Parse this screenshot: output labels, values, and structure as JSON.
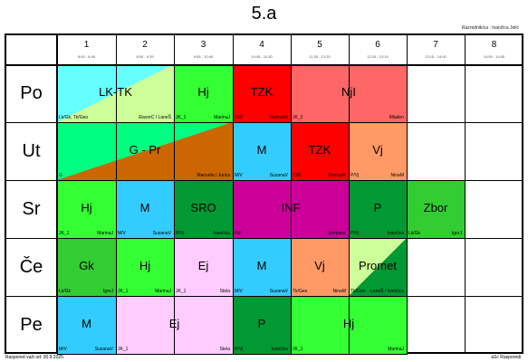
{
  "title": "5.a",
  "teacher_label": "Razrednik/ca : Ivančica Jelić",
  "footer_left": "Raspored važi od: 30.9.2025.",
  "footer_right": "aSc Rasporedi",
  "periods": [
    {
      "num": "1",
      "time": "8:00 - 8:45"
    },
    {
      "num": "2",
      "time": "8:50 - 9:35"
    },
    {
      "num": "3",
      "time": "9:55 - 10:40"
    },
    {
      "num": "4",
      "time": "10:45 - 11:30"
    },
    {
      "num": "5",
      "time": "11:35 - 12:20"
    },
    {
      "num": "6",
      "time": "12:25 - 13:10"
    },
    {
      "num": "7",
      "time": "13:15 - 14:00"
    },
    {
      "num": "8",
      "time": "14:05 - 14:50"
    }
  ],
  "days": [
    "Po",
    "Ut",
    "Sr",
    "Če",
    "Pe"
  ],
  "lessons": [
    {
      "day": 0,
      "start": 0,
      "span": 2,
      "subject": "LK-TK",
      "cls": "Lk/Gk, Tk/Geo",
      "teacher": "ĐavorC / LaneŠ",
      "color": "#66ffff",
      "color2": "#ccff99",
      "split": "tr"
    },
    {
      "day": 0,
      "start": 2,
      "span": 1,
      "subject": "Hj",
      "cls": "JK_1",
      "teacher": "MarinaJ",
      "color": "#33ff33"
    },
    {
      "day": 0,
      "start": 3,
      "span": 1,
      "subject": "TZK",
      "cls": "TZK",
      "teacher": "RomanR",
      "color": "#ff0000"
    },
    {
      "day": 0,
      "start": 4,
      "span": 2,
      "subject": "NjI",
      "cls": "JK_2",
      "teacher": "Mladen",
      "color": "#ff6666"
    },
    {
      "day": 1,
      "start": 0,
      "span": 3,
      "subject": "G - Pr",
      "cls": "G",
      "teacher": "Manuela / Jurica",
      "color": "#00ff80",
      "color2": "#cc6600",
      "split": "br"
    },
    {
      "day": 1,
      "start": 3,
      "span": 1,
      "subject": "M",
      "cls": "M/V",
      "teacher": "SuzanaV",
      "color": "#33ccff"
    },
    {
      "day": 1,
      "start": 4,
      "span": 1,
      "subject": "TZK",
      "cls": "TZK",
      "teacher": "RomanR",
      "color": "#ff0000"
    },
    {
      "day": 1,
      "start": 5,
      "span": 1,
      "subject": "Vj",
      "cls": "P/Vj",
      "teacher": "NinaM",
      "color": "#ff9966"
    },
    {
      "day": 2,
      "start": 0,
      "span": 1,
      "subject": "Hj",
      "cls": "JK_1",
      "teacher": "MarinaJ",
      "color": "#33ff33"
    },
    {
      "day": 2,
      "start": 1,
      "span": 1,
      "subject": "M",
      "cls": "M/V",
      "teacher": "SuzanaV",
      "color": "#33ccff"
    },
    {
      "day": 2,
      "start": 2,
      "span": 1,
      "subject": "SRO",
      "cls": "P/Vj",
      "teacher": "Ivančica",
      "color": "#009933"
    },
    {
      "day": 2,
      "start": 3,
      "span": 2,
      "subject": "INF",
      "cls": "INF",
      "teacher": "Gordana",
      "color": "#cc0099"
    },
    {
      "day": 2,
      "start": 5,
      "span": 1,
      "subject": "P",
      "cls": "P/Vj",
      "teacher": "Ivančica",
      "color": "#009933"
    },
    {
      "day": 2,
      "start": 6,
      "span": 1,
      "subject": "Zbor",
      "cls": "Lk/Gk",
      "teacher": "IgorJ",
      "color": "#33cc33"
    },
    {
      "day": 3,
      "start": 0,
      "span": 1,
      "subject": "Gk",
      "cls": "Lk/Gk",
      "teacher": "IgorJ",
      "color": "#33cc33"
    },
    {
      "day": 3,
      "start": 1,
      "span": 1,
      "subject": "Hj",
      "cls": "JK_1",
      "teacher": "MarinaJ",
      "color": "#33ff33"
    },
    {
      "day": 3,
      "start": 2,
      "span": 1,
      "subject": "Ej",
      "cls": "JK_1",
      "teacher": "Stela",
      "color": "#ffccff"
    },
    {
      "day": 3,
      "start": 3,
      "span": 1,
      "subject": "M",
      "cls": "M/V",
      "teacher": "SuzanaV",
      "color": "#33ccff"
    },
    {
      "day": 3,
      "start": 4,
      "span": 1,
      "subject": "Vj",
      "cls": "Tk/Geo",
      "teacher": "NinaM",
      "color": "#ff9966"
    },
    {
      "day": 3,
      "start": 5,
      "span": 1,
      "subject": "Promet",
      "cls": "Tk/Geo",
      "teacher": "LaneŠ / Ivančica",
      "color": "#ccff99",
      "color2": "#009933",
      "split": "br"
    },
    {
      "day": 4,
      "start": 0,
      "span": 1,
      "subject": "M",
      "cls": "M/V",
      "teacher": "SuzanaV",
      "color": "#33ccff"
    },
    {
      "day": 4,
      "start": 1,
      "span": 2,
      "subject": "Ej",
      "cls": "JK_1",
      "teacher": "Stela",
      "color": "#ffccff"
    },
    {
      "day": 4,
      "start": 3,
      "span": 1,
      "subject": "P",
      "cls": "P/Vj",
      "teacher": "Ivančica",
      "color": "#009933"
    },
    {
      "day": 4,
      "start": 4,
      "span": 2,
      "subject": "Hj",
      "cls": "JK_1",
      "teacher": "MarinaJ",
      "color": "#33ff33"
    }
  ]
}
